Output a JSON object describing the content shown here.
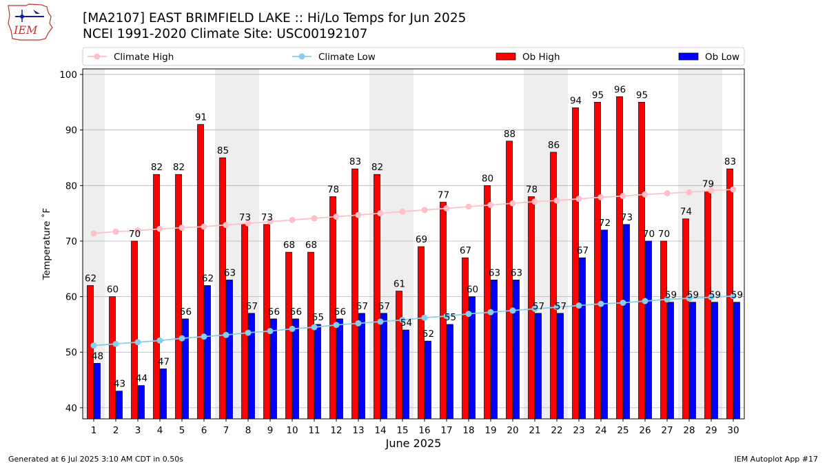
{
  "header": {
    "logo_text": "IEM",
    "title_line1": "[MA2107] EAST BRIMFIELD LAKE :: Hi/Lo Temps for Jun 2025",
    "title_line2": "NCEI 1991-2020 Climate Site: USC00192107"
  },
  "footer": {
    "left": "Generated at 6 Jul 2025 3:10 AM CDT in 0.50s",
    "right": "IEM Autoplot App #17"
  },
  "colors": {
    "ob_high": "#ff0000",
    "ob_low": "#0000ff",
    "climate_high": "#ffc0cb",
    "climate_low": "#87ceeb",
    "weekend_shade": "#eeeeee",
    "grid": "#b0b0b0"
  },
  "chart_data": {
    "type": "bar",
    "xlabel": "June 2025",
    "ylabel": "Temperature ˚F",
    "ylim": [
      38,
      101
    ],
    "yticks": [
      40,
      50,
      60,
      70,
      80,
      90,
      100
    ],
    "grid": "horizontal",
    "legend_position": "top",
    "categories": [
      "1",
      "2",
      "3",
      "4",
      "5",
      "6",
      "7",
      "8",
      "9",
      "10",
      "11",
      "12",
      "13",
      "14",
      "15",
      "16",
      "17",
      "18",
      "19",
      "20",
      "21",
      "22",
      "23",
      "24",
      "25",
      "26",
      "27",
      "28",
      "29",
      "30"
    ],
    "shaded_days": [
      1,
      7,
      8,
      14,
      15,
      21,
      22,
      28,
      29
    ],
    "series": [
      {
        "name": "Climate High",
        "kind": "line",
        "values": [
          71.4,
          71.7,
          71.9,
          72.2,
          72.4,
          72.6,
          72.9,
          73.2,
          73.5,
          73.8,
          74.1,
          74.4,
          74.7,
          75.0,
          75.3,
          75.6,
          75.9,
          76.2,
          76.5,
          76.8,
          77.1,
          77.3,
          77.6,
          77.9,
          78.1,
          78.4,
          78.6,
          78.8,
          79.1,
          79.3
        ]
      },
      {
        "name": "Climate Low",
        "kind": "line",
        "values": [
          51.2,
          51.5,
          51.8,
          52.1,
          52.5,
          52.8,
          53.1,
          53.5,
          53.8,
          54.2,
          54.5,
          54.9,
          55.2,
          55.5,
          55.8,
          56.2,
          56.5,
          56.9,
          57.2,
          57.5,
          57.8,
          58.1,
          58.4,
          58.7,
          58.9,
          59.2,
          59.5,
          59.7,
          59.9,
          60.1
        ]
      },
      {
        "name": "Ob High",
        "kind": "bar",
        "values": [
          62,
          60,
          70,
          82,
          82,
          91,
          85,
          73,
          73,
          68,
          68,
          78,
          83,
          82,
          61,
          69,
          77,
          67,
          80,
          88,
          78,
          86,
          94,
          95,
          96,
          95,
          70,
          74,
          79,
          83
        ]
      },
      {
        "name": "Ob Low",
        "kind": "bar",
        "values": [
          48,
          43,
          44,
          47,
          56,
          62,
          63,
          57,
          56,
          56,
          55,
          56,
          57,
          57,
          54,
          52,
          55,
          60,
          63,
          63,
          57,
          57,
          67,
          72,
          73,
          70,
          59,
          59,
          59,
          59
        ]
      }
    ]
  }
}
